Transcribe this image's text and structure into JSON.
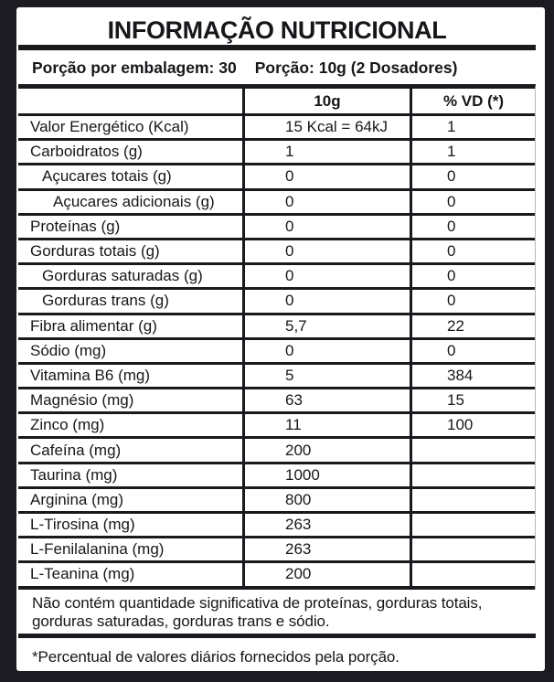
{
  "title": "INFORMAÇÃO NUTRICIONAL",
  "serving": {
    "per_package": "Porção por embalagem: 30",
    "per_serving": "Porção: 10g (2 Dosadores)"
  },
  "table": {
    "headers": [
      "",
      "10g",
      "% VD (*)"
    ],
    "rows": [
      {
        "label": "Valor Energético (Kcal)",
        "amount": "15 Kcal = 64kJ",
        "vd": "1",
        "indent": 0
      },
      {
        "label": "Carboidratos (g)",
        "amount": "1",
        "vd": "1",
        "indent": 0
      },
      {
        "label": "Açucares totais (g)",
        "amount": "0",
        "vd": "0",
        "indent": 1
      },
      {
        "label": "Açucares adicionais (g)",
        "amount": "0",
        "vd": "0",
        "indent": 2
      },
      {
        "label": "Proteínas (g)",
        "amount": "0",
        "vd": "0",
        "indent": 0
      },
      {
        "label": "Gorduras totais (g)",
        "amount": "0",
        "vd": "0",
        "indent": 0
      },
      {
        "label": "Gorduras saturadas (g)",
        "amount": "0",
        "vd": "0",
        "indent": 1
      },
      {
        "label": "Gorduras trans (g)",
        "amount": "0",
        "vd": "0",
        "indent": 1
      },
      {
        "label": "Fibra alimentar (g)",
        "amount": "5,7",
        "vd": "22",
        "indent": 0
      },
      {
        "label": "Sódio (mg)",
        "amount": "0",
        "vd": "0",
        "indent": 0
      },
      {
        "label": "Vitamina B6 (mg)",
        "amount": "5",
        "vd": "384",
        "indent": 0
      },
      {
        "label": "Magnésio (mg)",
        "amount": "63",
        "vd": "15",
        "indent": 0
      },
      {
        "label": "Zinco (mg)",
        "amount": "11",
        "vd": "100",
        "indent": 0
      },
      {
        "label": "Cafeína (mg)",
        "amount": "200",
        "vd": "",
        "indent": 0
      },
      {
        "label": "Taurina (mg)",
        "amount": "1000",
        "vd": "",
        "indent": 0
      },
      {
        "label": "Arginina (mg)",
        "amount": "800",
        "vd": "",
        "indent": 0
      },
      {
        "label": "L-Tirosina (mg)",
        "amount": "263",
        "vd": "",
        "indent": 0
      },
      {
        "label": "L-Fenilalanina (mg)",
        "amount": "263",
        "vd": "",
        "indent": 0
      },
      {
        "label": "L-Teanina (mg)",
        "amount": "200",
        "vd": "",
        "indent": 0
      }
    ]
  },
  "notes": {
    "no_significant_amounts": "Não contém quantidade significativa de proteínas, gorduras totais, gorduras saturadas, gorduras trans e sódio.",
    "footnote": "*Percentual de valores diários fornecidos pela porção."
  },
  "colors": {
    "frame": "#1b1b21",
    "line": "#1a1a1e",
    "background": "#ffffff"
  }
}
